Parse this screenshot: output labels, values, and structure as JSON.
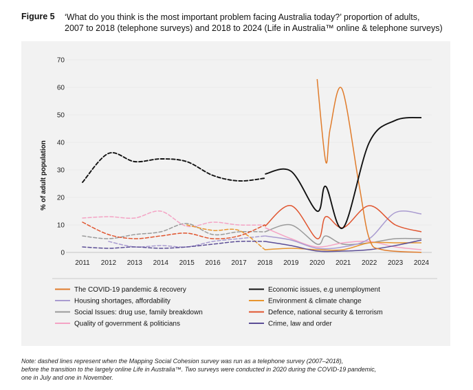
{
  "figure": {
    "label": "Figure 5",
    "title_line1": "‘What do you think is the most important problem facing Australia today?’ proportion of adults,",
    "title_line2": "2007 to 2018 (telephone surveys) and 2018 to 2024  (Life in Australia™ online & telephone surveys)"
  },
  "note": {
    "line1": "Note: dashed lines represent when the Mapping Social Cohesion survey was run as a telephone survey (2007–2018),",
    "line2": "before the transition to the largely online Life in Australia™. Two surveys were conducted in 2020 during the COVID-19 pandemic,",
    "line3": "one in July and one in November."
  },
  "chart_data": {
    "type": "line",
    "title": "‘What do you think is the most important problem facing Australia today?’",
    "xlabel": "",
    "ylabel": "% of adult population",
    "ylim": [
      0,
      70
    ],
    "yticks": [
      0,
      10,
      20,
      30,
      40,
      50,
      60,
      70
    ],
    "x_ticks": [
      2011,
      2012,
      2013,
      2014,
      2015,
      2016,
      2017,
      2018,
      2019,
      2020,
      2021,
      2022,
      2023,
      2024
    ],
    "x_tick_labels": [
      "2011",
      "2012",
      "2013",
      "2014",
      "2015",
      "2016",
      "2017",
      "2018",
      "2019",
      "2020",
      "2021",
      "2022",
      "2023",
      "2024"
    ],
    "legend_position": "bottom",
    "series": [
      {
        "name": "The COVID-19 pandemic & recovery",
        "color": "#e07b2a",
        "dashed_segment": [],
        "solid_segment": [
          [
            2020.0,
            63
          ],
          [
            2020.33,
            33
          ],
          [
            2020.5,
            45
          ],
          [
            2020.95,
            59.5
          ],
          [
            2021.6,
            25
          ],
          [
            2022.0,
            5
          ],
          [
            2022.5,
            1
          ],
          [
            2024.0,
            0
          ]
        ]
      },
      {
        "name": "Housing shortages, affordability",
        "color": "#a99bd0",
        "dashed_segment": [
          [
            2012.0,
            4
          ],
          [
            2013.0,
            2
          ],
          [
            2014.0,
            2.5
          ],
          [
            2015.0,
            2
          ],
          [
            2016.0,
            4
          ],
          [
            2017.0,
            5
          ],
          [
            2018.0,
            6
          ]
        ],
        "solid_segment": [
          [
            2018.0,
            6
          ],
          [
            2019.0,
            4.5
          ],
          [
            2020.0,
            1.5
          ],
          [
            2021.0,
            2
          ],
          [
            2022.0,
            5
          ],
          [
            2023.0,
            14.5
          ],
          [
            2024.0,
            14
          ]
        ]
      },
      {
        "name": "Social Issues: drug use, family breakdown",
        "color": "#9a9a9a",
        "dashed_segment": [
          [
            2011.0,
            6
          ],
          [
            2012.0,
            5
          ],
          [
            2013.0,
            6.5
          ],
          [
            2014.0,
            7.5
          ],
          [
            2015.0,
            10.5
          ],
          [
            2016.0,
            6.5
          ],
          [
            2017.0,
            7.5
          ],
          [
            2018.0,
            7.5
          ]
        ],
        "solid_segment": [
          [
            2018.0,
            7.5
          ],
          [
            2019.0,
            10
          ],
          [
            2020.0,
            3
          ],
          [
            2020.33,
            6
          ],
          [
            2021.0,
            3
          ],
          [
            2022.0,
            3.5
          ],
          [
            2023.0,
            5
          ],
          [
            2024.0,
            5
          ]
        ]
      },
      {
        "name": "Quality of government & politicians",
        "color": "#f4a3c4",
        "dashed_segment": [
          [
            2011.0,
            12.5
          ],
          [
            2012.0,
            13
          ],
          [
            2013.0,
            12.5
          ],
          [
            2014.0,
            15
          ],
          [
            2015.0,
            9.5
          ],
          [
            2016.0,
            11
          ],
          [
            2017.0,
            10
          ],
          [
            2018.0,
            10
          ]
        ],
        "solid_segment": [
          [
            2018.0,
            9
          ],
          [
            2019.0,
            5
          ],
          [
            2020.0,
            2
          ],
          [
            2021.0,
            3.5
          ],
          [
            2022.0,
            4
          ],
          [
            2023.0,
            2
          ],
          [
            2024.0,
            1
          ]
        ]
      },
      {
        "name": "Economic issues, e.g unemployment",
        "color": "#111111",
        "dashed_segment": [
          [
            2011.0,
            25.5
          ],
          [
            2012.0,
            36
          ],
          [
            2013.0,
            33
          ],
          [
            2014.0,
            34
          ],
          [
            2015.0,
            33
          ],
          [
            2016.0,
            28
          ],
          [
            2017.0,
            26
          ],
          [
            2018.0,
            27
          ]
        ],
        "solid_segment": [
          [
            2018.0,
            28.5
          ],
          [
            2019.0,
            29.5
          ],
          [
            2020.0,
            15
          ],
          [
            2020.33,
            24
          ],
          [
            2021.0,
            9
          ],
          [
            2022.0,
            40
          ],
          [
            2023.0,
            48
          ],
          [
            2024.0,
            49
          ]
        ]
      },
      {
        "name": "Environment & climate change",
        "color": "#e8952e",
        "dashed_segment": [
          [
            2015.0,
            10
          ],
          [
            2016.0,
            8
          ],
          [
            2017.0,
            8
          ],
          [
            2018.0,
            1
          ]
        ],
        "solid_segment": [
          [
            2018.0,
            1
          ],
          [
            2019.0,
            1.5
          ],
          [
            2020.0,
            1
          ],
          [
            2021.0,
            1
          ],
          [
            2022.0,
            3.5
          ],
          [
            2023.0,
            3.5
          ],
          [
            2024.0,
            3.5
          ]
        ]
      },
      {
        "name": "Defence, national security & terrorism",
        "color": "#e0542e",
        "dashed_segment": [
          [
            2011.0,
            11
          ],
          [
            2012.0,
            6.5
          ],
          [
            2013.0,
            5
          ],
          [
            2014.0,
            6
          ],
          [
            2015.0,
            7
          ],
          [
            2016.0,
            5
          ],
          [
            2017.0,
            6
          ],
          [
            2018.0,
            10
          ]
        ],
        "solid_segment": [
          [
            2018.0,
            9.5
          ],
          [
            2019.0,
            17
          ],
          [
            2020.0,
            5
          ],
          [
            2020.33,
            13
          ],
          [
            2021.0,
            9
          ],
          [
            2022.0,
            17
          ],
          [
            2023.0,
            10
          ],
          [
            2024.0,
            7.5
          ]
        ]
      },
      {
        "name": "Crime, law and order",
        "color": "#5b4d96",
        "dashed_segment": [
          [
            2011.0,
            2
          ],
          [
            2012.0,
            1.5
          ],
          [
            2013.0,
            2
          ],
          [
            2014.0,
            1.5
          ],
          [
            2015.0,
            2
          ],
          [
            2016.0,
            3
          ],
          [
            2017.0,
            4
          ],
          [
            2018.0,
            4
          ]
        ],
        "solid_segment": [
          [
            2018.0,
            4
          ],
          [
            2019.0,
            2.5
          ],
          [
            2020.0,
            0.5
          ],
          [
            2021.0,
            0.5
          ],
          [
            2022.0,
            1
          ],
          [
            2023.0,
            2.5
          ],
          [
            2024.0,
            4.5
          ]
        ]
      }
    ]
  }
}
